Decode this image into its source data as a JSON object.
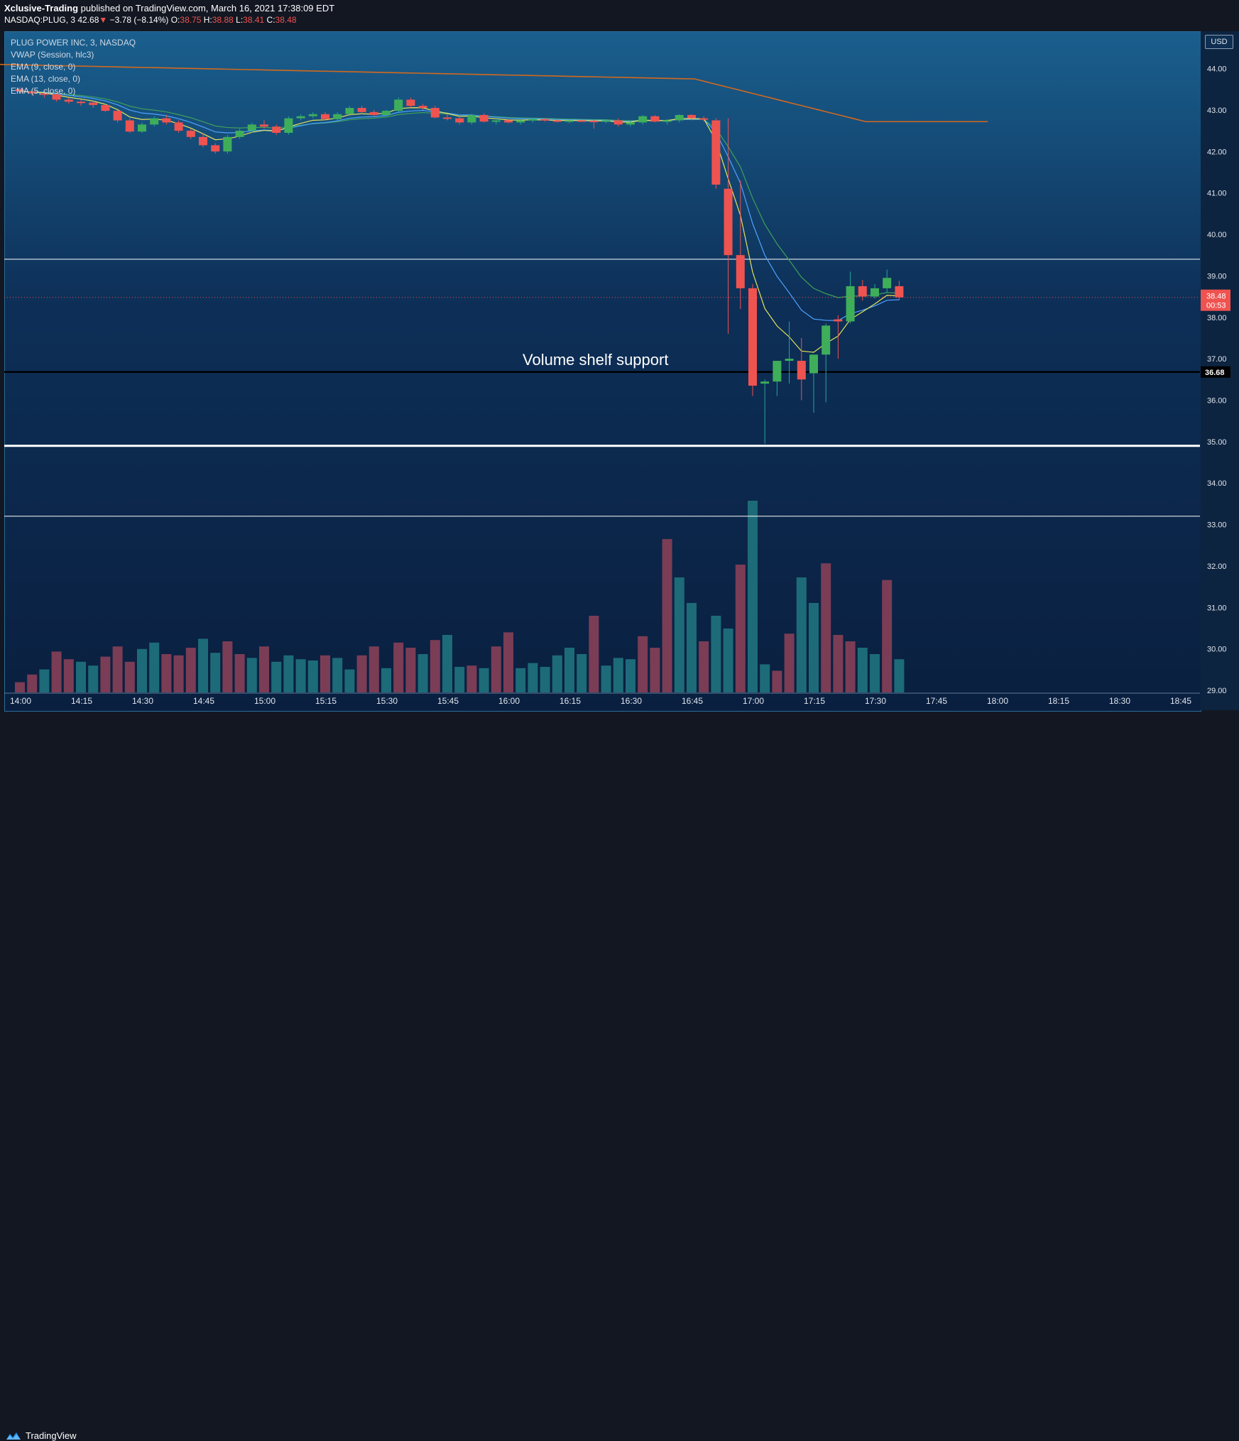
{
  "header": {
    "author": "Xclusive-Trading",
    "published_text": "published on TradingView.com, March 16, 2021 17:38:09 EDT",
    "symbol": "NASDAQ:PLUG, 3",
    "last": "42.68",
    "change_arrow": "▼",
    "change": "−3.78 (−8.14%)",
    "o_label": "O:",
    "o_value": "38.75",
    "h_label": "H:",
    "h_value": "38.88",
    "l_label": "L:",
    "l_value": "38.41",
    "c_label": "C:",
    "c_value": "38.48"
  },
  "legend": {
    "title": "PLUG POWER INC, 3, NASDAQ",
    "vwap": "VWAP (Session, hlc3)",
    "ema9": "EMA (9, close, 0)",
    "ema13": "EMA (13, close, 0)",
    "ema5": "EMA (5, close, 0)"
  },
  "currency_badge": "USD",
  "annotation": "Volume shelf support",
  "price_label_current": "38.48",
  "price_label_timer": "00:53",
  "price_label_support": "36.68",
  "footer": {
    "brand": "TradingView",
    "logo_icon": "tradingview-logo-icon"
  },
  "colors": {
    "up": "#26a69a",
    "up_body": "#3fae5a",
    "down": "#ef5350",
    "vol_up": "#1d6b78",
    "vol_down": "#7a3d55",
    "vwap": "#d2691e",
    "ema9": "#4ea3ff",
    "ema13": "#3fa05a",
    "ema5": "#e6e35a",
    "support": "#000000",
    "hline": "#ffffff"
  },
  "chart_data": {
    "type": "candlestick",
    "title": "PLUG POWER INC, 3, NASDAQ",
    "y_ticks": [
      "44.00",
      "43.00",
      "42.00",
      "41.00",
      "40.00",
      "39.00",
      "38.00",
      "37.00",
      "36.00",
      "35.00",
      "34.00",
      "33.00",
      "32.00",
      "31.00",
      "30.00",
      "29.00"
    ],
    "x_ticks": [
      "14:00",
      "14:15",
      "14:30",
      "14:45",
      "15:00",
      "15:15",
      "15:30",
      "15:45",
      "16:00",
      "16:15",
      "16:30",
      "16:45",
      "17:00",
      "17:15",
      "17:30",
      "17:45",
      "18:00",
      "18:15",
      "18:30",
      "18:45"
    ],
    "ylim": [
      28.95,
      44.9
    ],
    "horizontal_lines": [
      {
        "y": 39.4,
        "style": "thin-white"
      },
      {
        "y": 36.68,
        "style": "thick-black"
      },
      {
        "y": 34.9,
        "style": "thick-white"
      },
      {
        "y": 33.2,
        "style": "thin-white"
      }
    ],
    "candles": [
      {
        "t": "14:00",
        "o": 43.5,
        "h": 43.55,
        "l": 43.42,
        "c": 43.45
      },
      {
        "t": "14:03",
        "o": 43.45,
        "h": 43.5,
        "l": 43.35,
        "c": 43.4
      },
      {
        "t": "14:06",
        "o": 43.4,
        "h": 43.45,
        "l": 43.3,
        "c": 43.38
      },
      {
        "t": "14:09",
        "o": 43.38,
        "h": 43.42,
        "l": 43.2,
        "c": 43.25
      },
      {
        "t": "14:12",
        "o": 43.25,
        "h": 43.3,
        "l": 43.15,
        "c": 43.2
      },
      {
        "t": "14:15",
        "o": 43.2,
        "h": 43.25,
        "l": 43.1,
        "c": 43.18
      },
      {
        "t": "14:18",
        "o": 43.18,
        "h": 43.22,
        "l": 43.05,
        "c": 43.12
      },
      {
        "t": "14:21",
        "o": 43.12,
        "h": 43.15,
        "l": 42.95,
        "c": 42.98
      },
      {
        "t": "14:24",
        "o": 42.98,
        "h": 43.0,
        "l": 42.7,
        "c": 42.75
      },
      {
        "t": "14:27",
        "o": 42.75,
        "h": 42.8,
        "l": 42.45,
        "c": 42.48
      },
      {
        "t": "14:30",
        "o": 42.48,
        "h": 42.7,
        "l": 42.45,
        "c": 42.65
      },
      {
        "t": "14:33",
        "o": 42.65,
        "h": 42.85,
        "l": 42.6,
        "c": 42.8
      },
      {
        "t": "14:36",
        "o": 42.8,
        "h": 42.88,
        "l": 42.65,
        "c": 42.7
      },
      {
        "t": "14:39",
        "o": 42.7,
        "h": 42.75,
        "l": 42.45,
        "c": 42.5
      },
      {
        "t": "14:42",
        "o": 42.5,
        "h": 42.55,
        "l": 42.3,
        "c": 42.35
      },
      {
        "t": "14:45",
        "o": 42.35,
        "h": 42.45,
        "l": 42.1,
        "c": 42.15
      },
      {
        "t": "14:48",
        "o": 42.15,
        "h": 42.2,
        "l": 41.95,
        "c": 42.0
      },
      {
        "t": "14:51",
        "o": 42.0,
        "h": 42.4,
        "l": 41.95,
        "c": 42.35
      },
      {
        "t": "14:54",
        "o": 42.35,
        "h": 42.55,
        "l": 42.3,
        "c": 42.5
      },
      {
        "t": "14:57",
        "o": 42.5,
        "h": 42.7,
        "l": 42.45,
        "c": 42.65
      },
      {
        "t": "15:00",
        "o": 42.65,
        "h": 42.75,
        "l": 42.55,
        "c": 42.6
      },
      {
        "t": "15:03",
        "o": 42.6,
        "h": 42.65,
        "l": 42.4,
        "c": 42.45
      },
      {
        "t": "15:06",
        "o": 42.45,
        "h": 42.85,
        "l": 42.4,
        "c": 42.8
      },
      {
        "t": "15:09",
        "o": 42.8,
        "h": 42.9,
        "l": 42.75,
        "c": 42.85
      },
      {
        "t": "15:12",
        "o": 42.85,
        "h": 42.95,
        "l": 42.8,
        "c": 42.9
      },
      {
        "t": "15:15",
        "o": 42.9,
        "h": 42.95,
        "l": 42.75,
        "c": 42.78
      },
      {
        "t": "15:18",
        "o": 42.78,
        "h": 42.95,
        "l": 42.75,
        "c": 42.9
      },
      {
        "t": "15:21",
        "o": 42.9,
        "h": 43.1,
        "l": 42.85,
        "c": 43.05
      },
      {
        "t": "15:24",
        "o": 43.05,
        "h": 43.1,
        "l": 42.9,
        "c": 42.95
      },
      {
        "t": "15:27",
        "o": 42.95,
        "h": 43.0,
        "l": 42.85,
        "c": 42.88
      },
      {
        "t": "15:30",
        "o": 42.88,
        "h": 43.0,
        "l": 42.85,
        "c": 42.98
      },
      {
        "t": "15:33",
        "o": 42.98,
        "h": 43.3,
        "l": 42.95,
        "c": 43.25
      },
      {
        "t": "15:36",
        "o": 43.25,
        "h": 43.3,
        "l": 43.05,
        "c": 43.1
      },
      {
        "t": "15:39",
        "o": 43.1,
        "h": 43.15,
        "l": 43.0,
        "c": 43.05
      },
      {
        "t": "15:42",
        "o": 43.05,
        "h": 43.1,
        "l": 42.8,
        "c": 42.82
      },
      {
        "t": "15:45",
        "o": 42.82,
        "h": 42.9,
        "l": 42.75,
        "c": 42.8
      },
      {
        "t": "15:48",
        "o": 42.8,
        "h": 42.85,
        "l": 42.65,
        "c": 42.7
      },
      {
        "t": "15:51",
        "o": 42.7,
        "h": 42.9,
        "l": 42.65,
        "c": 42.88
      },
      {
        "t": "15:54",
        "o": 42.88,
        "h": 42.92,
        "l": 42.7,
        "c": 42.72
      },
      {
        "t": "15:57",
        "o": 42.72,
        "h": 42.8,
        "l": 42.65,
        "c": 42.75
      },
      {
        "t": "16:00",
        "o": 42.75,
        "h": 42.78,
        "l": 42.68,
        "c": 42.7
      },
      {
        "t": "16:03",
        "o": 42.7,
        "h": 42.78,
        "l": 42.65,
        "c": 42.75
      },
      {
        "t": "16:06",
        "o": 42.75,
        "h": 42.8,
        "l": 42.7,
        "c": 42.78
      },
      {
        "t": "16:09",
        "o": 42.78,
        "h": 42.8,
        "l": 42.72,
        "c": 42.75
      },
      {
        "t": "16:12",
        "o": 42.75,
        "h": 42.78,
        "l": 42.7,
        "c": 42.72
      },
      {
        "t": "16:15",
        "o": 42.72,
        "h": 42.78,
        "l": 42.68,
        "c": 42.75
      },
      {
        "t": "16:18",
        "o": 42.75,
        "h": 42.78,
        "l": 42.72,
        "c": 42.74
      },
      {
        "t": "16:21",
        "o": 42.74,
        "h": 42.76,
        "l": 42.55,
        "c": 42.72
      },
      {
        "t": "16:24",
        "o": 42.72,
        "h": 42.78,
        "l": 42.68,
        "c": 42.75
      },
      {
        "t": "16:27",
        "o": 42.75,
        "h": 42.8,
        "l": 42.6,
        "c": 42.65
      },
      {
        "t": "16:30",
        "o": 42.65,
        "h": 42.75,
        "l": 42.6,
        "c": 42.7
      },
      {
        "t": "16:33",
        "o": 42.7,
        "h": 42.88,
        "l": 42.65,
        "c": 42.85
      },
      {
        "t": "16:36",
        "o": 42.85,
        "h": 42.88,
        "l": 42.7,
        "c": 42.72
      },
      {
        "t": "16:39",
        "o": 42.72,
        "h": 42.78,
        "l": 42.65,
        "c": 42.75
      },
      {
        "t": "16:42",
        "o": 42.75,
        "h": 42.9,
        "l": 42.7,
        "c": 42.88
      },
      {
        "t": "16:45",
        "o": 42.88,
        "h": 42.9,
        "l": 42.75,
        "c": 42.8
      },
      {
        "t": "16:48",
        "o": 42.8,
        "h": 42.85,
        "l": 42.72,
        "c": 42.78
      },
      {
        "t": "16:51",
        "o": 42.75,
        "h": 42.8,
        "l": 41.1,
        "c": 41.2
      },
      {
        "t": "16:54",
        "o": 41.1,
        "h": 42.8,
        "l": 37.6,
        "c": 39.5
      },
      {
        "t": "16:57",
        "o": 39.5,
        "h": 41.3,
        "l": 38.2,
        "c": 38.7
      },
      {
        "t": "17:00",
        "o": 38.7,
        "h": 38.8,
        "l": 36.1,
        "c": 36.35
      },
      {
        "t": "17:03",
        "o": 36.4,
        "h": 36.5,
        "l": 34.95,
        "c": 36.45
      },
      {
        "t": "17:06",
        "o": 36.45,
        "h": 36.9,
        "l": 36.1,
        "c": 36.95
      },
      {
        "t": "17:09",
        "o": 36.95,
        "h": 37.9,
        "l": 36.4,
        "c": 37.0
      },
      {
        "t": "17:12",
        "o": 36.95,
        "h": 37.5,
        "l": 36.0,
        "c": 36.5
      },
      {
        "t": "17:15",
        "o": 36.65,
        "h": 37.05,
        "l": 35.7,
        "c": 37.1
      },
      {
        "t": "17:18",
        "o": 37.1,
        "h": 37.85,
        "l": 35.95,
        "c": 37.8
      },
      {
        "t": "17:21",
        "o": 37.95,
        "h": 38.05,
        "l": 37.0,
        "c": 37.9
      },
      {
        "t": "17:24",
        "o": 37.9,
        "h": 39.1,
        "l": 37.85,
        "c": 38.75
      },
      {
        "t": "17:27",
        "o": 38.75,
        "h": 38.9,
        "l": 38.4,
        "c": 38.5
      },
      {
        "t": "17:30",
        "o": 38.5,
        "h": 38.8,
        "l": 38.45,
        "c": 38.7
      },
      {
        "t": "17:33",
        "o": 38.7,
        "h": 39.15,
        "l": 38.6,
        "c": 38.95
      },
      {
        "t": "17:36",
        "o": 38.75,
        "h": 38.88,
        "l": 38.41,
        "c": 38.48
      }
    ],
    "volume": [
      16,
      28,
      36,
      64,
      52,
      48,
      42,
      56,
      72,
      48,
      68,
      78,
      60,
      58,
      70,
      84,
      62,
      80,
      60,
      54,
      72,
      48,
      58,
      52,
      50,
      58,
      54,
      36,
      58,
      72,
      38,
      78,
      70,
      60,
      82,
      90,
      40,
      42,
      38,
      72,
      94,
      38,
      46,
      40,
      58,
      70,
      60,
      120,
      42,
      54,
      52,
      88,
      70,
      240,
      180,
      140,
      80,
      120,
      100,
      200,
      300,
      44,
      34,
      92,
      180,
      140,
      202,
      90,
      80,
      70,
      60,
      176,
      52
    ],
    "volume_direction": [
      "d",
      "d",
      "u",
      "d",
      "d",
      "u",
      "u",
      "d",
      "d",
      "d",
      "u",
      "u",
      "d",
      "d",
      "d",
      "u",
      "u",
      "d",
      "d",
      "u",
      "d",
      "u",
      "u",
      "u",
      "u",
      "d",
      "u",
      "u",
      "d",
      "d",
      "u",
      "d",
      "d",
      "u",
      "d",
      "u",
      "u",
      "d",
      "u",
      "d",
      "d",
      "u",
      "u",
      "u",
      "u",
      "u",
      "u",
      "d",
      "u",
      "u",
      "u",
      "d",
      "d",
      "d",
      "u",
      "u",
      "d",
      "u",
      "u",
      "d",
      "u",
      "u",
      "d",
      "d",
      "u",
      "u",
      "d",
      "d",
      "d",
      "u",
      "u",
      "d",
      "u"
    ],
    "vwap": {
      "start": 44.1,
      "end": 42.72
    },
    "current_price": 38.48
  }
}
